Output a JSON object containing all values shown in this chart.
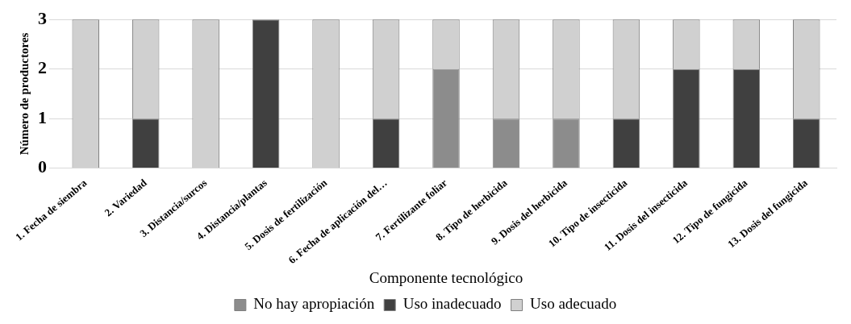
{
  "chart_data": {
    "type": "bar",
    "stacked": true,
    "xlabel": "Componente tecnológico",
    "ylabel": "Número de productores",
    "categories": [
      "1. Fecha de siembra",
      "2. Variedad",
      "3. Distancia/surcos",
      "4. Distancia/plantas",
      "5. Dosis de fertilización",
      "6. Fecha de aplicación del…",
      "7. Fertilizante foliar",
      "8. Tipo de herbicida",
      "9. Dosis del herbicida",
      "10. Tipo de insecticida",
      "11. Dosis del insecticida",
      "12. Tipo de fungicida",
      "13. Dosis del fungicida"
    ],
    "series": [
      {
        "name": "No hay apropiación",
        "color": "#8c8c8c",
        "values": [
          0,
          0,
          0,
          0,
          0,
          0,
          2,
          1,
          1,
          0,
          0,
          0,
          0
        ]
      },
      {
        "name": "Uso inadecuado",
        "color": "#404040",
        "values": [
          0,
          1,
          0,
          3,
          0,
          1,
          0,
          0,
          0,
          1,
          2,
          2,
          1
        ]
      },
      {
        "name": "Uso adecuado",
        "color": "#d0d0d0",
        "values": [
          3,
          2,
          3,
          0,
          3,
          2,
          1,
          2,
          2,
          2,
          1,
          1,
          2
        ]
      }
    ],
    "ylim": [
      0,
      3
    ],
    "yticks": [
      0,
      1,
      2,
      3
    ],
    "grid": "y",
    "legend": "bottom"
  }
}
